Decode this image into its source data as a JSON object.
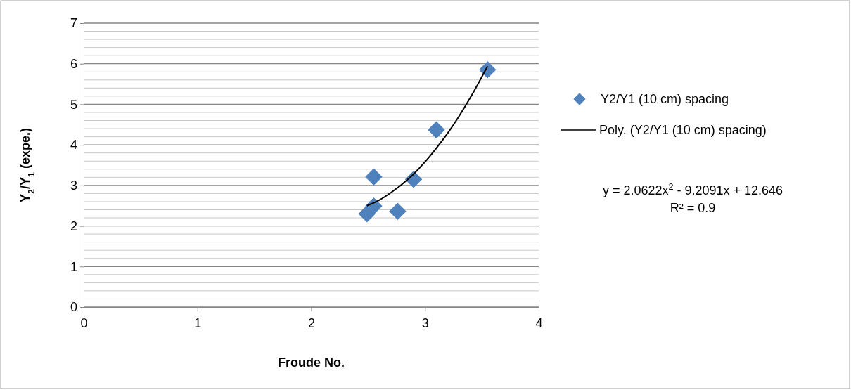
{
  "chart_data": {
    "type": "scatter",
    "xlabel": "Froude No.",
    "ylabel": "Y$_{2}$/Y$_{1}$ (expe.)",
    "xlim": [
      0,
      4
    ],
    "xticks": [
      0,
      1,
      2,
      3,
      4
    ],
    "ylim": [
      0,
      7
    ],
    "yticks": [
      0,
      {
        "value": 0.2,
        "label": null
      },
      {
        "value": 0.4,
        "label": null
      },
      {
        "value": 0.6,
        "label": null
      },
      {
        "value": 0.8,
        "label": null
      },
      1,
      {
        "value": 1.2,
        "label": null
      },
      {
        "value": 1.4,
        "label": null
      },
      {
        "value": 1.6,
        "label": null
      },
      {
        "value": 1.8,
        "label": null
      },
      2,
      {
        "value": 2.2,
        "label": null
      },
      {
        "value": 2.4,
        "label": null
      },
      {
        "value": 2.6,
        "label": null
      },
      {
        "value": 2.8,
        "label": null
      },
      3,
      {
        "value": 3.2,
        "label": null
      },
      {
        "value": 3.4,
        "label": null
      },
      {
        "value": 3.6,
        "label": null
      },
      {
        "value": 3.8,
        "label": null
      },
      4,
      {
        "value": 4.2,
        "label": null
      },
      {
        "value": 4.4,
        "label": null
      },
      {
        "value": 4.6,
        "label": null
      },
      {
        "value": 4.8,
        "label": null
      },
      5,
      {
        "value": 5.2,
        "label": null
      },
      {
        "value": 5.4,
        "label": null
      },
      {
        "value": 5.6,
        "label": null
      },
      {
        "value": 5.8,
        "label": null
      },
      6,
      {
        "value": 6.2,
        "label": null
      },
      {
        "value": 6.4,
        "label": null
      },
      {
        "value": 6.6,
        "label": null
      },
      {
        "value": 6.8,
        "label": null
      },
      7
    ],
    "grid": "y",
    "legend": "right",
    "series": [
      {
        "name": "Y2/Y1 (10 cm) spacing",
        "marker": "diamond",
        "color": "#4f81bd",
        "x": [
          3.55,
          3.1,
          2.9,
          2.55,
          2.55,
          2.49,
          2.76
        ],
        "values": [
          5.85,
          4.37,
          3.15,
          3.21,
          2.49,
          2.3,
          2.36
        ]
      },
      {
        "name": "Poly. (Y2/Y1 (10 cm) spacing)",
        "type": "line",
        "marker": "none",
        "color": "#000000",
        "line_style": "solid",
        "x": [
          2.49,
          2.6,
          2.7,
          2.9,
          3.0,
          3.1,
          3.2,
          3.3,
          3.4,
          3.55
        ],
        "values": [
          2.5,
          2.64,
          2.82,
          3.28,
          3.58,
          3.92,
          4.29,
          4.71,
          5.17,
          5.94
        ]
      }
    ],
    "annotations": [
      "y = 2.0622x$^{2}$ - 9.2091x + 12.646",
      "R² = 0.9"
    ]
  }
}
